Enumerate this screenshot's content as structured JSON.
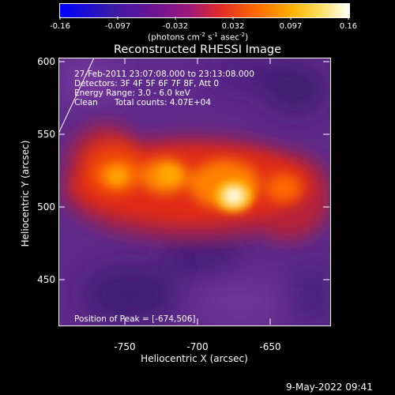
{
  "colorbar": {
    "ticks": [
      "-0.16",
      "-0.097",
      "-0.032",
      "0.032",
      "0.097",
      "0.16"
    ],
    "units_label": "(photons cm",
    "units_exp1": "-2",
    "units_mid1": " s",
    "units_exp2": "-1",
    "units_mid2": " asec",
    "units_exp3": "-2",
    "units_close": ")"
  },
  "plot": {
    "title": "Reconstructed RHESSI Image",
    "xlabel": "Heliocentric X (arcsec)",
    "ylabel": "Heliocentric Y (arcsec)",
    "xticks": [
      "-750",
      "-700",
      "-650"
    ],
    "yticks": [
      "600",
      "550",
      "500",
      "450"
    ]
  },
  "annotations": {
    "time_range": "27-Feb-2011 23:07:08.000 to 23:13:08.000",
    "detectors": "Detectors: 3F 4F 5F 6F 7F 8F, Att 0",
    "energy": "Energy Range: 3.0 - 6.0 keV",
    "method": "Clean",
    "counts": "Total counts: 4.07E+04",
    "peak": "Position of Peak = [-674,506]"
  },
  "footer": {
    "date": "9-May-2022 09:41"
  },
  "colors": {
    "background": "#000000",
    "colormap": [
      "#0000ff",
      "#5a1496",
      "#b41e6e",
      "#ff3c00",
      "#ffa000",
      "#ffff80",
      "#ffffff"
    ]
  }
}
